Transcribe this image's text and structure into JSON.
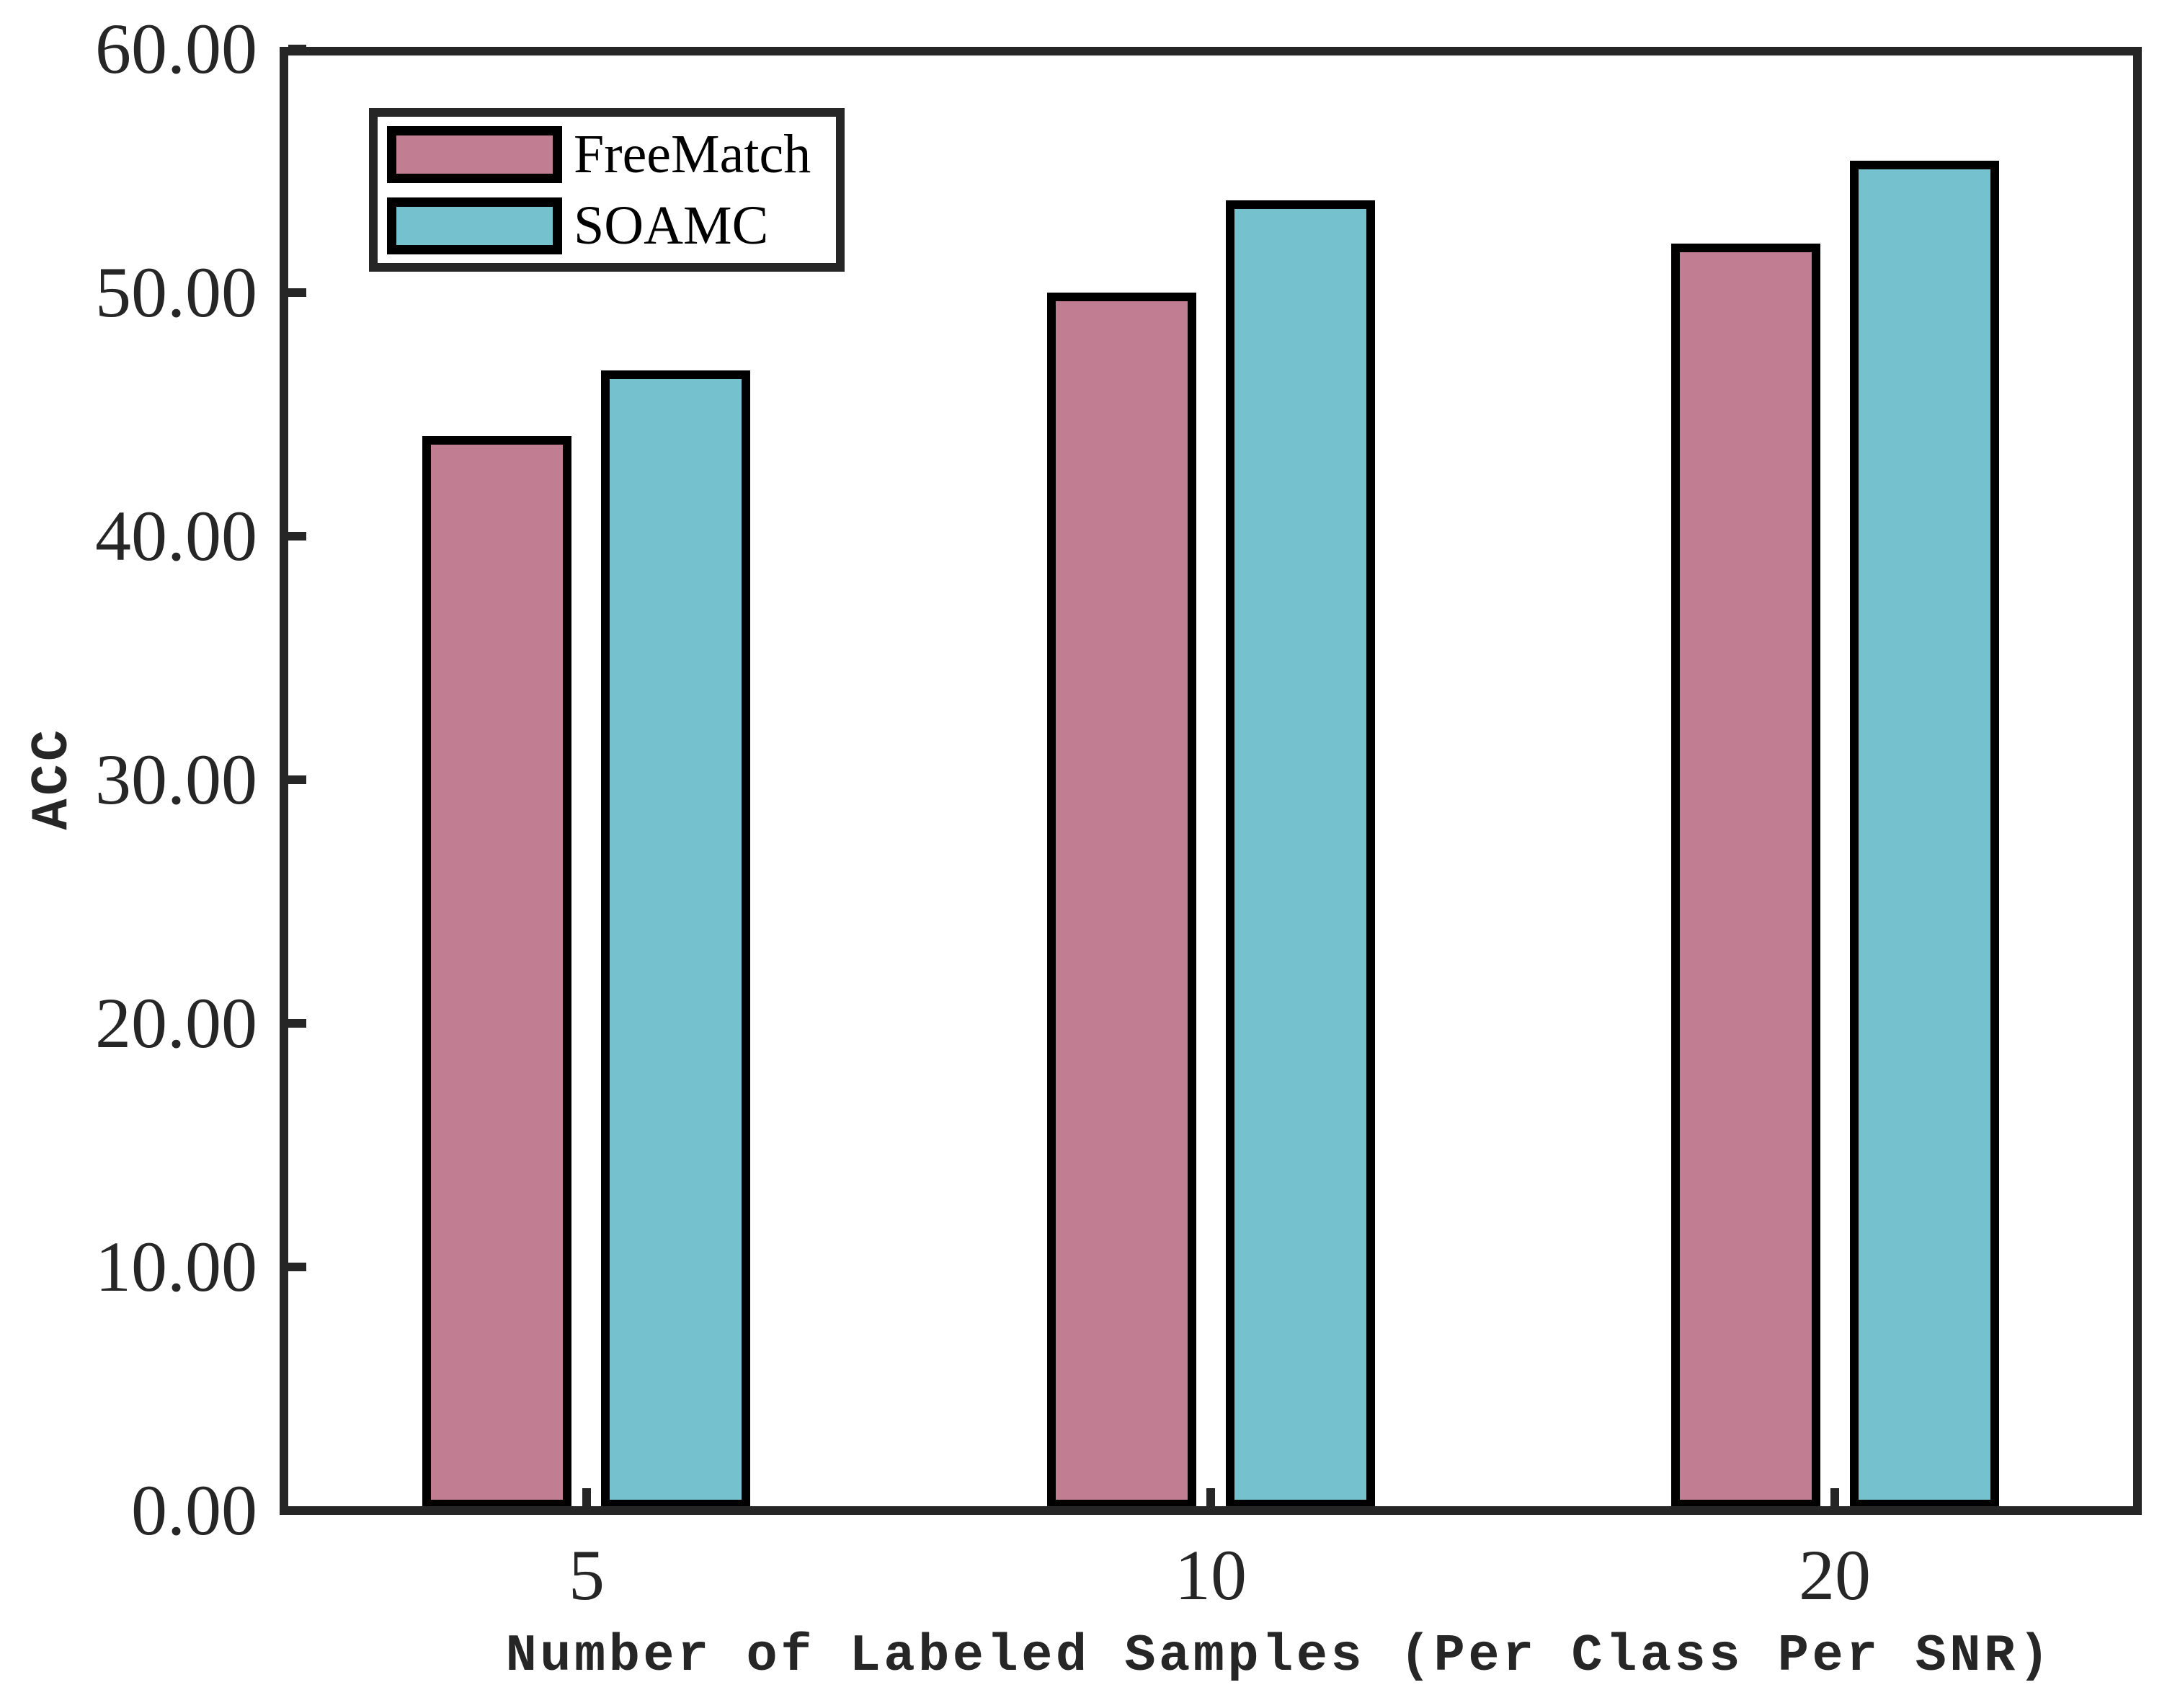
{
  "chart_data": {
    "type": "bar",
    "title": "",
    "xlabel": "Number of Labeled Samples (Per Class Per SNR)",
    "ylabel": "ACC",
    "categories": [
      "5",
      "10",
      "20"
    ],
    "series": [
      {
        "name": "FreeMatch",
        "color": "#C17D92",
        "values": [
          44.1,
          50.0,
          52.0
        ]
      },
      {
        "name": "SOAMC",
        "color": "#76C1CE",
        "values": [
          46.8,
          53.8,
          55.4
        ]
      }
    ],
    "ylim": [
      0,
      60
    ],
    "ytick_step": 10,
    "ytick_labels": [
      "0.00",
      "10.00",
      "20.00",
      "30.00",
      "40.00",
      "50.00",
      "60.00"
    ],
    "grid": false,
    "legend_position": "top-left",
    "bar_edge_color": "#000000",
    "axis_color": "#262626",
    "background_color": "#ffffff"
  }
}
